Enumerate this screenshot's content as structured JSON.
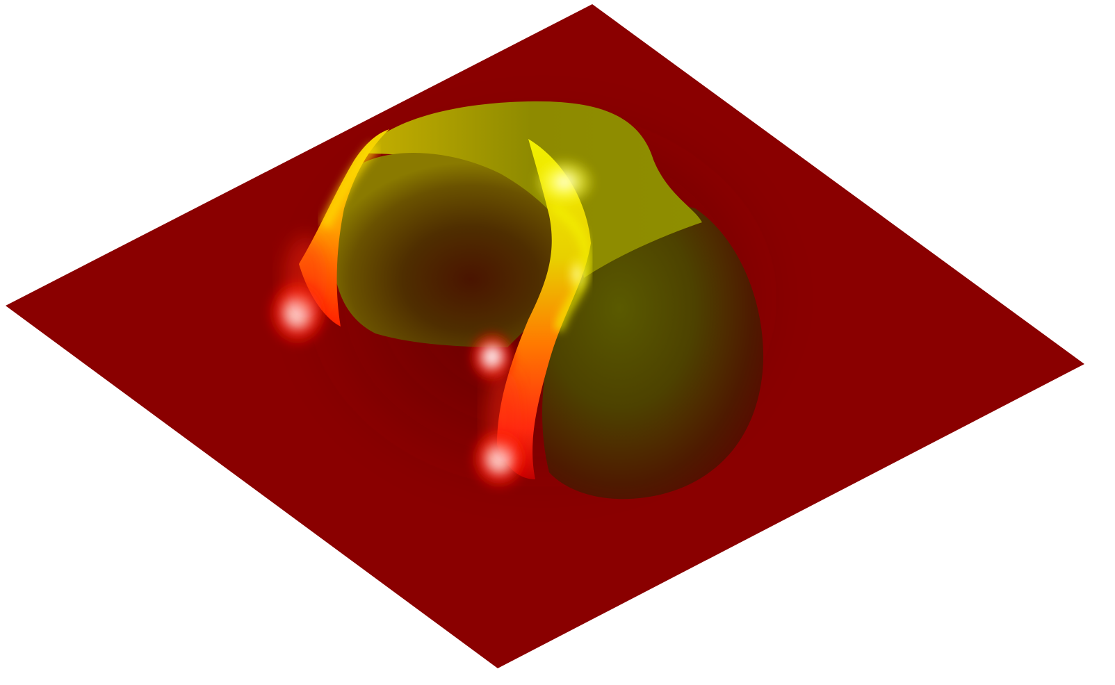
{
  "scene": {
    "background_color": "#ffffff",
    "plane_color": "#8a0000",
    "surface_highlight_color": "#e6e600",
    "surface_mid_color": "#8a8a00",
    "surface_shadow_color": "#4a3200",
    "rim_glow_color": "#ff2a10",
    "specular_color": "#ffffff"
  }
}
